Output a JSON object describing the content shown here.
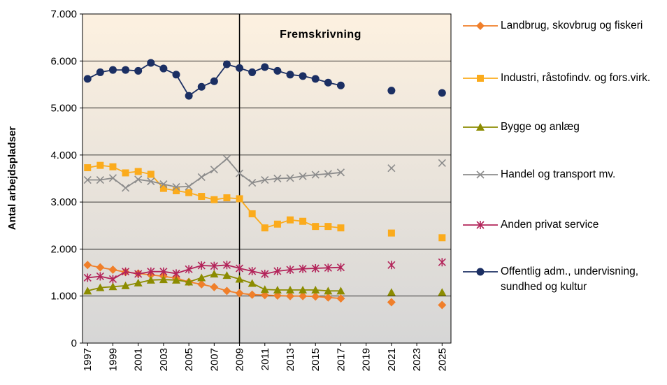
{
  "chart_data": {
    "type": "line",
    "y_label": "Antal arbejdspladser",
    "annotation": "Fremskrivning",
    "divider_x": 2009,
    "x": [
      1997,
      1998,
      1999,
      2000,
      2001,
      2002,
      2003,
      2004,
      2005,
      2006,
      2007,
      2008,
      2009,
      2010,
      2011,
      2012,
      2013,
      2014,
      2015,
      2016,
      2017,
      2019,
      2021,
      2023,
      2025
    ],
    "xlim": [
      1996.6,
      2025.7
    ],
    "xticks": [
      1997,
      1999,
      2001,
      2003,
      2005,
      2007,
      2009,
      2011,
      2013,
      2015,
      2017,
      2019,
      2021,
      2023,
      2025
    ],
    "ylim": [
      0,
      7000
    ],
    "yticks": [
      {
        "value": 0,
        "label": "0"
      },
      {
        "value": 1000,
        "label": "1.000"
      },
      {
        "value": 2000,
        "label": "2.000"
      },
      {
        "value": 3000,
        "label": "3.000"
      },
      {
        "value": 4000,
        "label": "4.000"
      },
      {
        "value": 5000,
        "label": "5.000"
      },
      {
        "value": 6000,
        "label": "6.000"
      },
      {
        "value": 7000,
        "label": "7.000"
      }
    ],
    "grid": true,
    "legend": "right",
    "series": [
      {
        "name": "Landbrug, skovbrug og fiskeri",
        "color": "#f07f2a",
        "marker": "diamond",
        "values": [
          1660,
          1610,
          1560,
          1510,
          1480,
          1450,
          1420,
          1380,
          1300,
          1250,
          1190,
          1110,
          1060,
          1030,
          1020,
          1010,
          1000,
          1000,
          990,
          970,
          950,
          null,
          870,
          null,
          810
        ]
      },
      {
        "name": "Industri, råstofindv. og fors.virk.",
        "color": "#fbab1c",
        "marker": "square",
        "values": [
          3730,
          3780,
          3750,
          3620,
          3650,
          3590,
          3290,
          3240,
          3200,
          3120,
          3050,
          3090,
          3070,
          2750,
          2450,
          2530,
          2620,
          2590,
          2480,
          2480,
          2450,
          null,
          2340,
          null,
          2240
        ]
      },
      {
        "name": "Bygge og anlæg",
        "color": "#8c8c00",
        "marker": "triangle",
        "values": [
          1110,
          1180,
          1200,
          1220,
          1280,
          1340,
          1350,
          1340,
          1300,
          1390,
          1470,
          1440,
          1360,
          1270,
          1140,
          1130,
          1130,
          1130,
          1130,
          1110,
          1110,
          null,
          1080,
          null,
          1080
        ]
      },
      {
        "name": "Handel og transport mv.",
        "color": "#8c8c8c",
        "marker": "x",
        "values": [
          3470,
          3470,
          3510,
          3300,
          3480,
          3440,
          3380,
          3320,
          3330,
          3530,
          3690,
          3920,
          3610,
          3410,
          3470,
          3500,
          3510,
          3550,
          3580,
          3600,
          3630,
          null,
          3720,
          null,
          3830
        ]
      },
      {
        "name": "Anden privat service",
        "color": "#b3245a",
        "marker": "asterisk",
        "values": [
          1390,
          1420,
          1360,
          1520,
          1470,
          1520,
          1520,
          1480,
          1570,
          1650,
          1640,
          1660,
          1590,
          1530,
          1470,
          1530,
          1560,
          1580,
          1590,
          1600,
          1610,
          null,
          1660,
          null,
          1720
        ]
      },
      {
        "name": "Offentlig adm., undervisning, sundhed og kultur",
        "color": "#1b2f63",
        "marker": "circle",
        "values": [
          5620,
          5760,
          5810,
          5810,
          5790,
          5960,
          5840,
          5710,
          5260,
          5450,
          5570,
          5930,
          5850,
          5760,
          5870,
          5790,
          5710,
          5680,
          5620,
          5540,
          5480,
          null,
          5370,
          null,
          5320
        ]
      }
    ]
  }
}
